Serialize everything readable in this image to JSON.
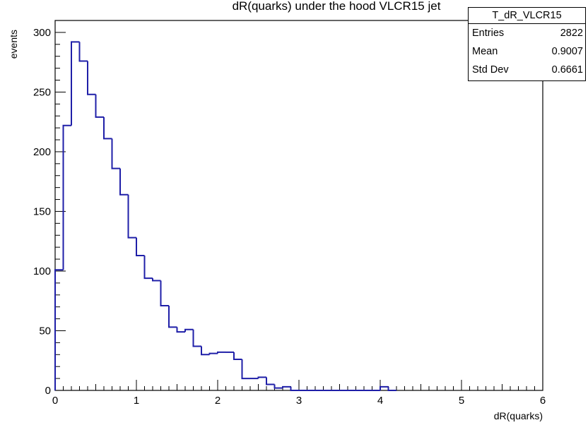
{
  "chart_data": {
    "type": "histogram",
    "title": "dR(quarks) under the hood VLCR15 jet",
    "xlabel": "dR(quarks)",
    "ylabel": "events",
    "xlim": [
      0,
      6
    ],
    "ylim": [
      0,
      310
    ],
    "x_ticks": [
      "0",
      "1",
      "2",
      "3",
      "4",
      "5",
      "6"
    ],
    "y_ticks": [
      "0",
      "50",
      "100",
      "150",
      "200",
      "250",
      "300"
    ],
    "bin_edges": [
      0,
      0.1,
      0.2,
      0.3,
      0.4,
      0.5,
      0.6,
      0.7,
      0.8,
      0.9,
      1.0,
      1.1,
      1.2,
      1.3,
      1.4,
      1.5,
      1.6,
      1.7,
      1.8,
      1.9,
      2.0,
      2.1,
      2.2,
      2.3,
      2.4,
      2.5,
      2.6,
      2.7,
      2.8,
      2.9,
      3.0,
      3.1,
      3.2,
      3.3,
      3.4,
      3.5,
      3.6,
      3.7,
      3.8,
      3.9,
      4.0,
      4.1,
      4.2
    ],
    "values": [
      101,
      222,
      292,
      276,
      248,
      229,
      211,
      186,
      164,
      128,
      113,
      94,
      92,
      71,
      53,
      49,
      51,
      37,
      30,
      31,
      32,
      32,
      26,
      10,
      10,
      11,
      5,
      2,
      3,
      0,
      0,
      0,
      0,
      0,
      0,
      0,
      0,
      0,
      0,
      0,
      3,
      0
    ],
    "line_color": "#1f1fa8"
  },
  "stats": {
    "name": "T_dR_VLCR15",
    "rows": [
      {
        "label": "Entries",
        "value": "2822"
      },
      {
        "label": "Mean",
        "value": "0.9007"
      },
      {
        "label": "Std Dev",
        "value": "0.6661"
      }
    ]
  }
}
